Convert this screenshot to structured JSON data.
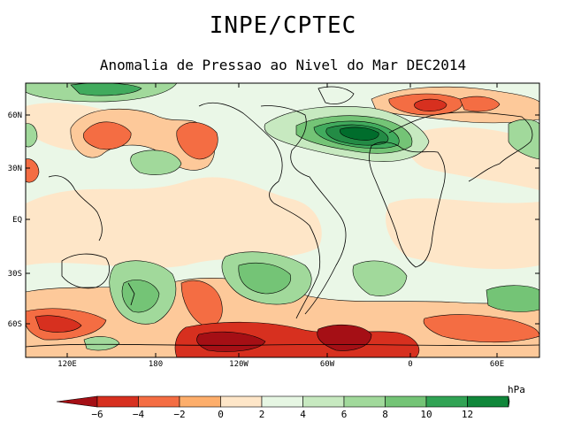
{
  "header": {
    "title": "INPE/CPTEC",
    "subtitle": "Anomalia de Pressao ao Nivel do Mar DEC2014"
  },
  "map": {
    "lon_labels": [
      "120E",
      "180",
      "120W",
      "60W",
      "0",
      "60E"
    ],
    "lat_labels": [
      "60N",
      "30N",
      "EQ",
      "30S",
      "60S"
    ]
  },
  "colorbar": {
    "unit": "hPa",
    "tick_labels": [
      "-6",
      "-4",
      "-2",
      "0",
      "2",
      "4",
      "6",
      "8",
      "10",
      "12"
    ],
    "colors": [
      "#a50f15",
      "#d7301f",
      "#f46d43",
      "#fdae6b",
      "#fee6c8",
      "#e6f6e3",
      "#c7e9c0",
      "#a1d99b",
      "#74c476",
      "#31a354",
      "#10873a",
      "#006d2c"
    ]
  },
  "palette": {
    "neg3": "#d7301f",
    "neg2": "#f46d43",
    "neg1": "#fdc99a",
    "neg0": "#fee6c8",
    "pos0": "#eaf7e7",
    "pos1": "#c7e9c0",
    "pos2": "#a1d99b",
    "pos3": "#74c476",
    "pos4": "#41ab5d",
    "pos5": "#238b45",
    "pos6": "#006d2c",
    "dark_red": "#a50f15"
  }
}
